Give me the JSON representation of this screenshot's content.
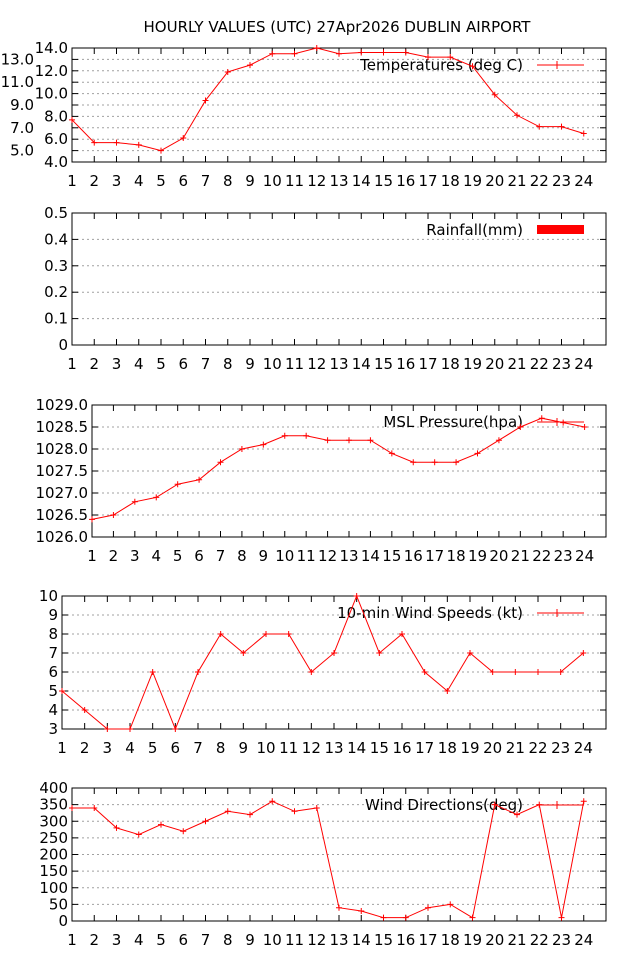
{
  "title": "HOURLY VALUES (UTC) 27Apr2026  DUBLIN AIRPORT",
  "colors": {
    "series": "#ff0000",
    "grid": "#a0a0a0",
    "axis": "#000000"
  },
  "chart_data": [
    {
      "type": "line",
      "legend": "Temperatures (deg C)",
      "legend_position": "top-right",
      "x": [
        1,
        2,
        3,
        4,
        5,
        6,
        7,
        8,
        9,
        10,
        11,
        12,
        13,
        14,
        15,
        16,
        17,
        18,
        19,
        20,
        21,
        22,
        23,
        24
      ],
      "values": [
        7.7,
        5.7,
        5.7,
        5.5,
        5.0,
        6.1,
        9.4,
        11.9,
        12.5,
        13.5,
        13.5,
        14.0,
        13.5,
        13.6,
        13.6,
        13.6,
        13.2,
        13.2,
        12.4,
        9.9,
        8.1,
        7.1,
        7.1,
        6.5
      ],
      "ylim": [
        4,
        14
      ],
      "yticks": [
        "4.0",
        "5.0",
        "6.0",
        "7.0",
        "8.0",
        "9.0",
        "10.0",
        "11.0",
        "12.0",
        "13.0",
        "14.0"
      ],
      "grid": true
    },
    {
      "type": "bar",
      "legend": "Rainfall(mm)",
      "legend_position": "top-right",
      "x": [
        1,
        2,
        3,
        4,
        5,
        6,
        7,
        8,
        9,
        10,
        11,
        12,
        13,
        14,
        15,
        16,
        17,
        18,
        19,
        20,
        21,
        22,
        23,
        24
      ],
      "values": [
        0,
        0,
        0,
        0,
        0,
        0,
        0,
        0,
        0,
        0,
        0,
        0,
        0,
        0,
        0,
        0,
        0,
        0,
        0,
        0,
        0,
        0,
        0,
        0
      ],
      "ylim": [
        0,
        0.5
      ],
      "yticks": [
        "0",
        "0.1",
        "0.2",
        "0.3",
        "0.4",
        "0.5"
      ],
      "grid": true
    },
    {
      "type": "line",
      "legend": "MSL Pressure(hpa)",
      "legend_position": "top-right",
      "x": [
        1,
        2,
        3,
        4,
        5,
        6,
        7,
        8,
        9,
        10,
        11,
        12,
        13,
        14,
        15,
        16,
        17,
        18,
        19,
        20,
        21,
        22,
        23,
        24
      ],
      "values": [
        1026.4,
        1026.5,
        1026.8,
        1026.9,
        1027.2,
        1027.3,
        1027.7,
        1028.0,
        1028.1,
        1028.3,
        1028.3,
        1028.2,
        1028.2,
        1028.2,
        1027.9,
        1027.7,
        1027.7,
        1027.7,
        1027.9,
        1028.2,
        1028.5,
        1028.7,
        1028.6,
        1028.5
      ],
      "ylim": [
        1026,
        1029
      ],
      "yticks": [
        "1026.0",
        "1026.5",
        "1027.0",
        "1027.5",
        "1028.0",
        "1028.5",
        "1029.0"
      ],
      "grid": true
    },
    {
      "type": "line",
      "legend": "10-min Wind Speeds (kt)",
      "legend_position": "top-right",
      "x": [
        1,
        2,
        3,
        4,
        5,
        6,
        7,
        8,
        9,
        10,
        11,
        12,
        13,
        14,
        15,
        16,
        17,
        18,
        19,
        20,
        21,
        22,
        23,
        24
      ],
      "values": [
        5,
        4,
        3,
        3,
        6,
        3,
        6,
        8,
        7,
        8,
        8,
        6,
        7,
        10,
        7,
        8,
        6,
        5,
        7,
        6,
        6,
        6,
        6,
        7
      ],
      "ylim": [
        3,
        10
      ],
      "yticks": [
        "3",
        "4",
        "5",
        "6",
        "7",
        "8",
        "9",
        "10"
      ],
      "grid": true
    },
    {
      "type": "line",
      "legend": "Wind Directions(deg)",
      "legend_position": "top-right",
      "x": [
        1,
        2,
        3,
        4,
        5,
        6,
        7,
        8,
        9,
        10,
        11,
        12,
        13,
        14,
        15,
        16,
        17,
        18,
        19,
        20,
        21,
        22,
        23,
        24
      ],
      "values": [
        340,
        340,
        280,
        260,
        290,
        270,
        300,
        330,
        320,
        360,
        330,
        340,
        40,
        30,
        10,
        10,
        40,
        50,
        10,
        350,
        320,
        350,
        10,
        360
      ],
      "ylim": [
        0,
        400
      ],
      "yticks": [
        "0",
        "50",
        "100",
        "150",
        "200",
        "250",
        "300",
        "350",
        "400"
      ],
      "grid": true
    }
  ]
}
